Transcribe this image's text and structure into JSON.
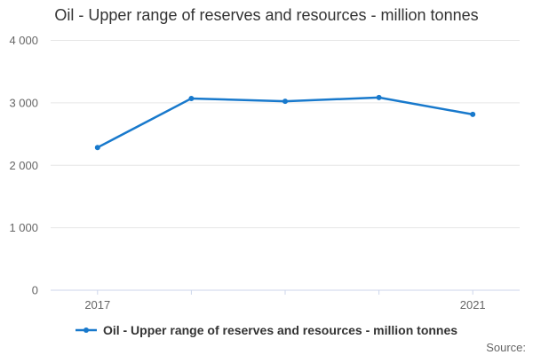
{
  "title": "Oil - Upper range of reserves and resources - million tonnes",
  "legend": {
    "label": "Oil - Upper range of reserves and resources - million tonnes",
    "marker_icon": "line-with-dot-icon"
  },
  "source_label": "Source:",
  "colors": {
    "line": "#1879cc",
    "grid": "#e6e6e6",
    "axis_line": "#ccd6eb",
    "tick": "#ccd6eb",
    "title_text": "#333333",
    "axis_label_text": "#666666",
    "legend_text": "#333333",
    "source_text": "#666666",
    "background": "#ffffff"
  },
  "chart_data": {
    "type": "line",
    "title": "Oil - Upper range of reserves and resources - million tonnes",
    "categories": [
      "2017",
      "2018",
      "2019",
      "2020",
      "2021"
    ],
    "series": [
      {
        "name": "Oil - Upper range of reserves and resources - million tonnes",
        "values": [
          2285,
          3070,
          3025,
          3085,
          2815
        ]
      }
    ],
    "xlabel": "",
    "ylabel": "",
    "ylim": [
      0,
      4000
    ],
    "y_ticks": [
      0,
      1000,
      2000,
      3000,
      4000
    ],
    "y_tick_labels": [
      "0",
      "1 000",
      "2 000",
      "3 000",
      "4 000"
    ],
    "x_tick_labels_shown": [
      "2017",
      "2021"
    ],
    "grid": "horizontal",
    "legend_position": "bottom",
    "marker": "circle"
  }
}
